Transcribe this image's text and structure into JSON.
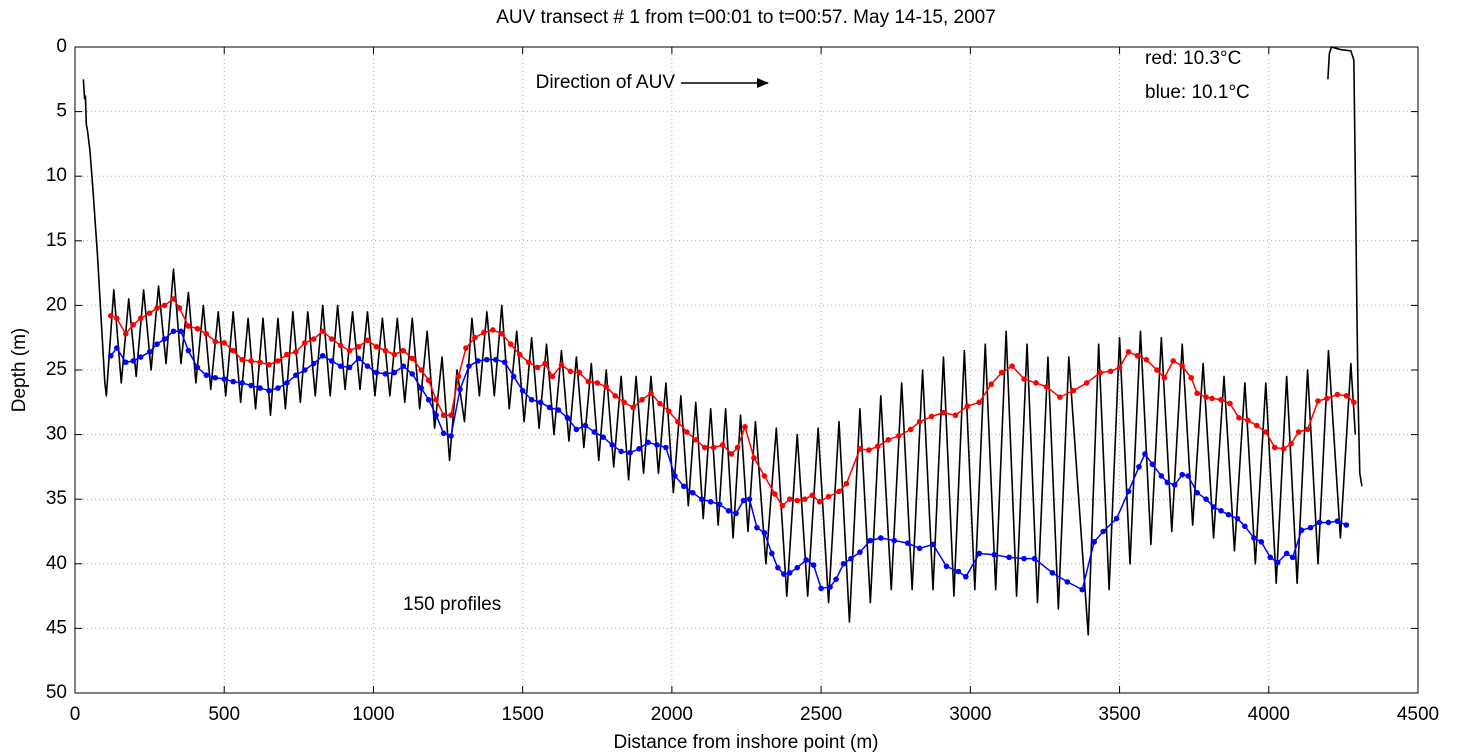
{
  "chart_data": {
    "type": "line",
    "title": "AUV transect # 1 from t=00:01 to t=00:57. May 14-15, 2007",
    "xlabel": "Distance from inshore point (m)",
    "ylabel": "Depth (m)",
    "xlim": [
      0,
      4500
    ],
    "ylim": [
      0,
      50
    ],
    "y_inverted": true,
    "xticks": [
      0,
      500,
      1000,
      1500,
      2000,
      2500,
      3000,
      3500,
      4000,
      4500
    ],
    "yticks": [
      0,
      5,
      10,
      15,
      20,
      25,
      30,
      35,
      40,
      45,
      50
    ],
    "grid": true,
    "annotations": [
      "Direction of AUV",
      "red: 10.3°C",
      "blue: 10.1°C",
      "150 profiles"
    ],
    "series": [
      {
        "color": "#000000",
        "marker": false,
        "x": [
          28,
          32,
          35,
          38,
          42,
          50,
          60,
          75,
          90,
          100,
          105,
          130,
          155,
          180,
          205,
          230,
          255,
          280,
          305,
          330,
          355,
          380,
          405,
          430,
          455,
          480,
          505,
          530,
          555,
          580,
          605,
          630,
          655,
          680,
          705,
          730,
          755,
          780,
          805,
          830,
          855,
          880,
          905,
          930,
          955,
          980,
          1005,
          1030,
          1055,
          1080,
          1105,
          1130,
          1155,
          1180,
          1205,
          1230,
          1255,
          1280,
          1305,
          1330,
          1355,
          1380,
          1405,
          1430,
          1455,
          1480,
          1505,
          1530,
          1555,
          1580,
          1605,
          1630,
          1655,
          1680,
          1705,
          1730,
          1755,
          1780,
          1805,
          1830,
          1855,
          1880,
          1905,
          1930,
          1955,
          1980,
          2005,
          2030,
          2055,
          2080,
          2105,
          2130,
          2155,
          2180,
          2205,
          2230,
          2255,
          2280,
          2315,
          2350,
          2385,
          2420,
          2455,
          2490,
          2525,
          2560,
          2595,
          2630,
          2665,
          2700,
          2735,
          2770,
          2805,
          2840,
          2875,
          2910,
          2945,
          2980,
          3015,
          3050,
          3085,
          3120,
          3155,
          3190,
          3225,
          3260,
          3295,
          3330,
          3395,
          3430,
          3465,
          3500,
          3535,
          3570,
          3605,
          3640,
          3675,
          3710,
          3745,
          3780,
          3815,
          3850,
          3885,
          3920,
          3955,
          3990,
          4025,
          4060,
          4095,
          4130,
          4165,
          4200,
          4240,
          4275,
          4290,
          null,
          4198,
          4203,
          4210,
          4240,
          4275,
          4285,
          4290,
          4295,
          4300,
          4305,
          4312
        ],
        "values": [
          2.5,
          4,
          3.8,
          6,
          6.5,
          8,
          11,
          16,
          22,
          26,
          27,
          18.8,
          26,
          19.5,
          25.5,
          18.8,
          25,
          18.5,
          24.5,
          17.2,
          24.5,
          19,
          26,
          20,
          26.5,
          20.5,
          27,
          20.5,
          27.5,
          21,
          28,
          21,
          28.5,
          21,
          28,
          20.5,
          27.5,
          20.5,
          27,
          20,
          27,
          20,
          26.5,
          20.5,
          26.5,
          20.5,
          27,
          21,
          27,
          21,
          27.5,
          21,
          28,
          22,
          29.5,
          24,
          32,
          25,
          29,
          21,
          27,
          20.5,
          27,
          20,
          28,
          22,
          29,
          22.5,
          29.5,
          23,
          30,
          23.5,
          30.5,
          24,
          31,
          24.5,
          32,
          25,
          32.5,
          25.5,
          33.5,
          25.5,
          33,
          25.5,
          33,
          26,
          34.5,
          27,
          35.5,
          27.5,
          36.5,
          28,
          37,
          28,
          38,
          28.5,
          37.5,
          29,
          40,
          29.5,
          42.5,
          30,
          42.5,
          29.5,
          43,
          29,
          44.5,
          28,
          43,
          27,
          42,
          26,
          42,
          25,
          42,
          24,
          42.5,
          23.5,
          42,
          23,
          42,
          22,
          42.5,
          23,
          43,
          24,
          43.5,
          24,
          45.5,
          23,
          42,
          22.5,
          40,
          22,
          38.5,
          22.5,
          37.5,
          23,
          37,
          24.5,
          38,
          25.5,
          39,
          26,
          40,
          26,
          41.5,
          25.5,
          41.5,
          25,
          40,
          23.5,
          38,
          24.5,
          30,
          null,
          2.5,
          0.5,
          0,
          0.2,
          0.3,
          1,
          10,
          20,
          28,
          33,
          34
        ]
      },
      {
        "color": "#ff0000",
        "marker": true,
        "x": [
          120,
          140,
          170,
          195,
          220,
          250,
          275,
          300,
          330,
          350,
          380,
          410,
          440,
          470,
          500,
          530,
          560,
          590,
          620,
          650,
          680,
          710,
          740,
          770,
          800,
          830,
          860,
          890,
          920,
          950,
          980,
          1010,
          1040,
          1070,
          1100,
          1130,
          1160,
          1185,
          1210,
          1235,
          1260,
          1285,
          1310,
          1340,
          1370,
          1400,
          1430,
          1460,
          1490,
          1520,
          1550,
          1575,
          1600,
          1630,
          1660,
          1690,
          1720,
          1750,
          1780,
          1810,
          1840,
          1870,
          1900,
          1930,
          1960,
          1990,
          2020,
          2050,
          2080,
          2110,
          2140,
          2170,
          2200,
          2220,
          2245,
          2275,
          2310,
          2345,
          2370,
          2395,
          2420,
          2445,
          2470,
          2495,
          2525,
          2560,
          2585,
          2630,
          2660,
          2690,
          2725,
          2760,
          2800,
          2830,
          2870,
          2910,
          2950,
          2990,
          3030,
          3070,
          3105,
          3140,
          3180,
          3220,
          3255,
          3300,
          3345,
          3390,
          3435,
          3470,
          3500,
          3530,
          3560,
          3590,
          3625,
          3650,
          3680,
          3710,
          3740,
          3760,
          3790,
          3810,
          3840,
          3870,
          3900,
          3930,
          3960,
          3990,
          4020,
          4050,
          4075,
          4100,
          4130,
          4165,
          4195,
          4230,
          4260,
          4285
        ],
        "values": [
          20.8,
          21,
          22.2,
          21.5,
          21,
          20.6,
          20.2,
          20,
          19.5,
          20.2,
          21.6,
          21.8,
          22.2,
          22.8,
          22.9,
          23.5,
          24.2,
          24.3,
          24.4,
          24.6,
          24.3,
          23.8,
          23.6,
          22.9,
          22.6,
          22,
          22.6,
          23.1,
          23.5,
          23.2,
          22.7,
          23.2,
          23.5,
          23.8,
          23.5,
          24.1,
          25,
          25.8,
          27.3,
          28.5,
          28.5,
          25.5,
          23.3,
          22.5,
          22.1,
          21.9,
          22.2,
          23,
          23.8,
          24.4,
          24.8,
          24.5,
          25.5,
          24.6,
          25.1,
          25.2,
          25.9,
          26,
          26.3,
          27,
          27.5,
          27.9,
          27.3,
          26.8,
          27.6,
          28.2,
          29,
          29.8,
          30.4,
          31,
          31,
          30.8,
          31.5,
          31,
          29.4,
          31.8,
          33.2,
          34.6,
          35.5,
          35,
          35.1,
          35,
          34.7,
          35.2,
          34.8,
          34.4,
          33.8,
          31.1,
          31.2,
          30.9,
          30.4,
          30.1,
          29.6,
          29,
          28.6,
          28.3,
          28.5,
          27.8,
          27.5,
          26.1,
          25.2,
          24.7,
          25.7,
          26,
          26.3,
          27.1,
          26.6,
          26,
          25.2,
          25.1,
          24.8,
          23.6,
          23.9,
          24.2,
          25,
          25.6,
          24.3,
          24.7,
          25.6,
          26.8,
          27.1,
          27.2,
          27.3,
          27.6,
          28.7,
          28.9,
          29.3,
          29.8,
          31,
          31.1,
          30.7,
          29.8,
          29.6,
          27.4,
          27.2,
          26.9,
          27,
          27.5
        ]
      },
      {
        "color": "#0000ff",
        "marker": true,
        "x": [
          120,
          140,
          170,
          195,
          220,
          250,
          275,
          300,
          330,
          355,
          380,
          410,
          440,
          470,
          500,
          530,
          560,
          590,
          620,
          650,
          680,
          710,
          740,
          770,
          800,
          830,
          860,
          890,
          920,
          950,
          980,
          1010,
          1040,
          1070,
          1100,
          1130,
          1160,
          1185,
          1210,
          1235,
          1260,
          1290,
          1320,
          1350,
          1380,
          1410,
          1440,
          1470,
          1500,
          1530,
          1560,
          1590,
          1620,
          1650,
          1680,
          1710,
          1740,
          1770,
          1800,
          1830,
          1860,
          1890,
          1920,
          1950,
          1980,
          2010,
          2040,
          2070,
          2100,
          2130,
          2160,
          2190,
          2215,
          2240,
          2260,
          2285,
          2310,
          2335,
          2355,
          2375,
          2395,
          2420,
          2450,
          2475,
          2500,
          2530,
          2550,
          2575,
          2600,
          2630,
          2665,
          2700,
          2745,
          2790,
          2830,
          2875,
          2920,
          2960,
          2985,
          3030,
          3080,
          3130,
          3180,
          3215,
          3275,
          3325,
          3375,
          3415,
          3445,
          3490,
          3530,
          3565,
          3585,
          3610,
          3640,
          3660,
          3685,
          3710,
          3730,
          3760,
          3790,
          3815,
          3840,
          3865,
          3895,
          3920,
          3950,
          3975,
          4005,
          4030,
          4060,
          4080,
          4110,
          4140,
          4170,
          4200,
          4230,
          4260
        ],
        "values": [
          23.9,
          23.3,
          24.4,
          24.3,
          24,
          23.6,
          23,
          22.6,
          22,
          22,
          23.5,
          24.8,
          25.4,
          25.6,
          25.7,
          25.9,
          26,
          26.2,
          26.4,
          26.6,
          26.4,
          26,
          25.4,
          25,
          24.5,
          23.9,
          24.3,
          24.7,
          24.8,
          24.1,
          24.7,
          25.2,
          25.3,
          25.2,
          24.7,
          25.3,
          26.4,
          27.3,
          28.5,
          29.9,
          30.1,
          26.5,
          24.7,
          24.3,
          24.2,
          24.2,
          24.4,
          25.5,
          26.6,
          27.3,
          27.5,
          27.9,
          28.1,
          28.7,
          29.6,
          29.3,
          29.8,
          30.2,
          30.8,
          31.3,
          31.4,
          31.1,
          30.6,
          30.8,
          31,
          33.2,
          34,
          34.5,
          35,
          35.2,
          35.4,
          35.9,
          36.1,
          35.1,
          35,
          37.2,
          37.6,
          39.2,
          40.3,
          40.8,
          40.7,
          40.3,
          39.7,
          40.1,
          41.9,
          41.8,
          41.2,
          40,
          39.6,
          39.1,
          38.2,
          38,
          38.2,
          38.4,
          38.8,
          38.5,
          40.2,
          40.6,
          41,
          39.2,
          39.3,
          39.5,
          39.6,
          39.6,
          40.7,
          41.4,
          42,
          38.3,
          37.5,
          36.5,
          34.4,
          32.5,
          31.5,
          32.3,
          33.2,
          33.7,
          33.9,
          33.1,
          33.2,
          34.5,
          35,
          35.6,
          35.9,
          36.2,
          36.5,
          37.1,
          38,
          38.3,
          39.5,
          39.9,
          39.2,
          39.5,
          37.4,
          37.2,
          36.8,
          36.8,
          36.7,
          37
        ]
      }
    ]
  }
}
